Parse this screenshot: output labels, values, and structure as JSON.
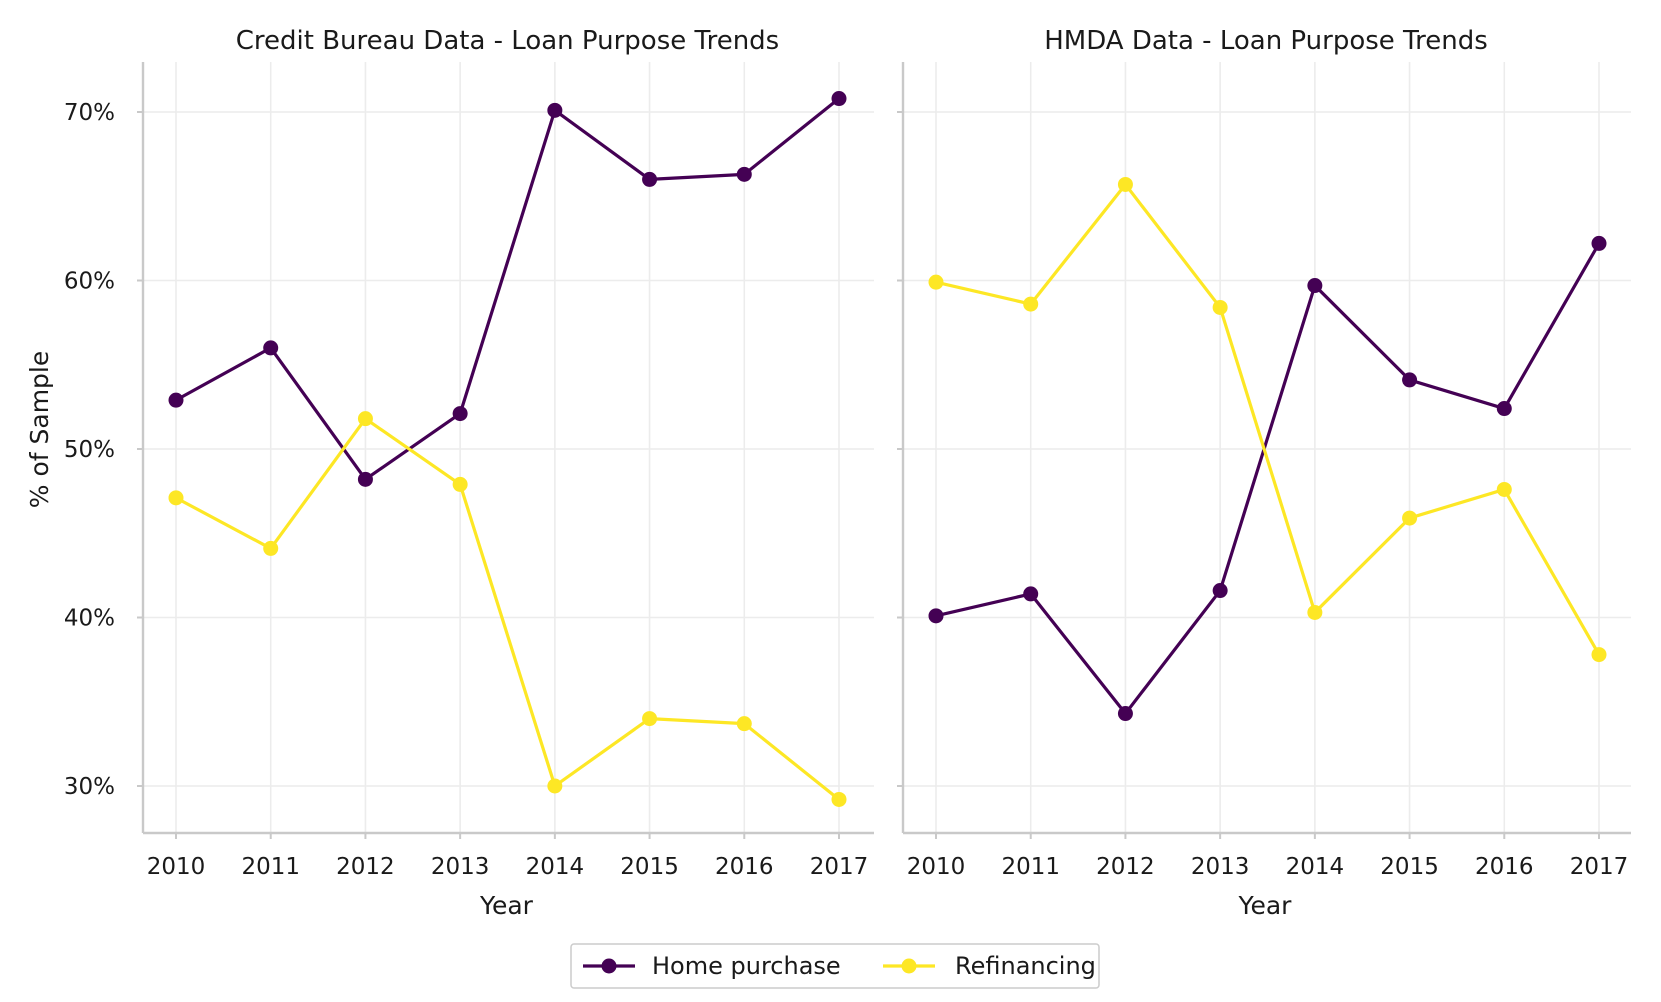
{
  "chart_data": [
    {
      "type": "line",
      "title": "Credit Bureau Data - Loan Purpose Trends",
      "xlabel": "Year",
      "ylabel": "% of Sample",
      "x": [
        2010,
        2011,
        2012,
        2013,
        2014,
        2015,
        2016,
        2017
      ],
      "ylim": [
        27.2,
        73
      ],
      "yticks": [
        30,
        40,
        50,
        60,
        70
      ],
      "ytick_labels": [
        "30%",
        "40%",
        "50%",
        "60%",
        "70%"
      ],
      "grid": true,
      "series": [
        {
          "name": "Home purchase",
          "color": "#440154",
          "values": [
            52.9,
            56.0,
            48.2,
            52.1,
            70.1,
            66.0,
            66.3,
            70.8
          ]
        },
        {
          "name": "Refinancing",
          "color": "#FDE725",
          "values": [
            47.1,
            44.1,
            51.8,
            47.9,
            30.0,
            34.0,
            33.7,
            29.2
          ]
        }
      ]
    },
    {
      "type": "line",
      "title": "HMDA Data - Loan Purpose Trends",
      "xlabel": "Year",
      "ylabel": "",
      "x": [
        2010,
        2011,
        2012,
        2013,
        2014,
        2015,
        2016,
        2017
      ],
      "ylim": [
        27.2,
        73
      ],
      "yticks": [
        30,
        40,
        50,
        60,
        70
      ],
      "ytick_labels": [
        "30%",
        "40%",
        "50%",
        "60%",
        "70%"
      ],
      "grid": true,
      "series": [
        {
          "name": "Home purchase",
          "color": "#440154",
          "values": [
            40.1,
            41.4,
            34.3,
            41.6,
            59.7,
            54.1,
            52.4,
            62.2
          ]
        },
        {
          "name": "Refinancing",
          "color": "#FDE725",
          "values": [
            59.9,
            58.6,
            65.7,
            58.4,
            40.3,
            45.9,
            47.6,
            37.8
          ]
        }
      ]
    }
  ],
  "legend": {
    "position": "bottom-center",
    "items": [
      {
        "label": "Home purchase",
        "color": "#440154"
      },
      {
        "label": "Refinancing",
        "color": "#FDE725"
      }
    ]
  }
}
